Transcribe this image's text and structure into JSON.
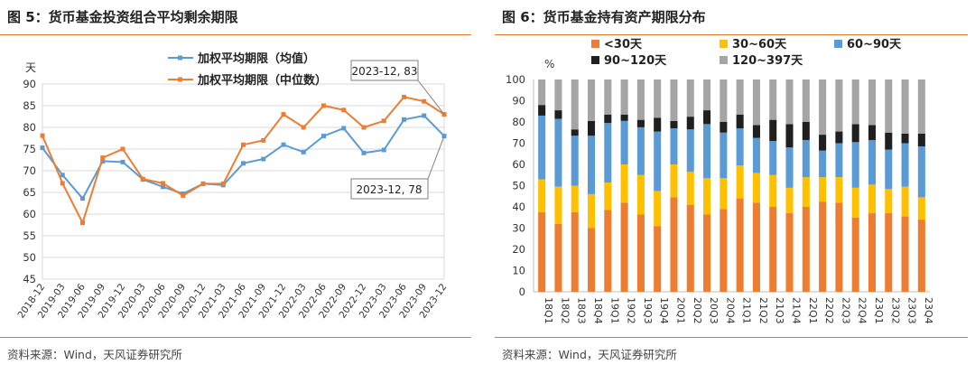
{
  "left": {
    "title": "图 5：货币基金投资组合平均剩余期限",
    "source": "资料来源：Wind，天风证券研究所",
    "unit_label": "天",
    "annotation_top": "2023-12, 83",
    "annotation_bottom": "2023-12, 78"
  },
  "right": {
    "title": "图 6：货币基金持有资产期限分布",
    "source": "资料来源：Wind，天风证券研究所",
    "unit_label": "%"
  },
  "colors": {
    "rule": "#e07b2e",
    "avg_line": "#5b9bd5",
    "median_line": "#ed7d31",
    "lt30": "#ed7d31",
    "d30_60": "#ffc000",
    "d60_90": "#5b9bd5",
    "d90_120": "#1f1f1f",
    "d120_397": "#a5a5a5"
  },
  "chart_data": [
    {
      "type": "line",
      "categories": [
        "2018-12",
        "2019-03",
        "2019-06",
        "2019-09",
        "2019-12",
        "2020-03",
        "2020-06",
        "2020-09",
        "2020-12",
        "2021-03",
        "2021-06",
        "2021-09",
        "2021-12",
        "2022-03",
        "2022-06",
        "2022-09",
        "2022-12",
        "2023-03",
        "2023-06",
        "2023-09",
        "2023-12"
      ],
      "series": [
        {
          "name": "加权平均期限（均值）",
          "values": [
            75.3,
            69,
            63.6,
            72.2,
            72,
            68,
            66.3,
            64.7,
            67,
            66.7,
            71.7,
            72.7,
            76,
            74.3,
            78,
            79.8,
            74.1,
            74.8,
            81.8,
            82.7,
            78
          ]
        },
        {
          "name": "加权平均期限（中位数）",
          "values": [
            78.1,
            67.1,
            58,
            73,
            75,
            68.1,
            67.1,
            64.3,
            67,
            67,
            76,
            77,
            83,
            80,
            85,
            84,
            80,
            81.5,
            87,
            86,
            83
          ]
        }
      ],
      "ylim": [
        45,
        90
      ],
      "yticks": [
        45,
        50,
        55,
        60,
        65,
        70,
        75,
        80,
        85,
        90
      ],
      "ylabel": "天",
      "grid": true,
      "legend": "top"
    },
    {
      "type": "bar",
      "stacked": true,
      "categories": [
        "18Q1",
        "18Q2",
        "18Q3",
        "18Q4",
        "19Q1",
        "19Q2",
        "19Q3",
        "19Q4",
        "20Q1",
        "20Q2",
        "20Q3",
        "20Q4",
        "21Q1",
        "21Q2",
        "21Q3",
        "21Q4",
        "22Q1",
        "22Q2",
        "22Q3",
        "22Q4",
        "23Q1",
        "23Q2",
        "23Q3",
        "23Q4"
      ],
      "series": [
        {
          "name": "<30天",
          "values": [
            37.5,
            32,
            37.5,
            30,
            38.5,
            42,
            36.5,
            31,
            44.5,
            41,
            36.5,
            39,
            44,
            42,
            40,
            37,
            40,
            42.5,
            42,
            35,
            37,
            37,
            35.5,
            34
          ]
        },
        {
          "name": "30~60天",
          "values": [
            15.5,
            17.5,
            12.5,
            16,
            13,
            18,
            18.5,
            16.5,
            15.5,
            15.5,
            17,
            14.5,
            15.5,
            14,
            15,
            12,
            14,
            11.5,
            12,
            14,
            13.5,
            11.5,
            14,
            10.5
          ]
        },
        {
          "name": "60~90天",
          "values": [
            30,
            32,
            23.5,
            27.5,
            28,
            20.5,
            22.5,
            28,
            17,
            20,
            25.5,
            21.5,
            17.5,
            16.5,
            16,
            19,
            17.5,
            12.5,
            16,
            21.5,
            21,
            18.5,
            20.5,
            24
          ]
        },
        {
          "name": "90~120天",
          "values": [
            5,
            4,
            3,
            7,
            4,
            3,
            3.5,
            6.5,
            3.5,
            6,
            6.5,
            5,
            6.5,
            6,
            10,
            11,
            8.5,
            7.5,
            5.5,
            8.5,
            7,
            8,
            4.5,
            6
          ]
        },
        {
          "name": "120~397天",
          "values": [
            12,
            14.5,
            23.5,
            19.5,
            16.5,
            16.5,
            19,
            18,
            19.5,
            17.5,
            14.5,
            20,
            16.5,
            21.5,
            19,
            21,
            20,
            26,
            24.5,
            21,
            21.5,
            25,
            25.5,
            25.5
          ]
        }
      ],
      "ylim": [
        0,
        100
      ],
      "yticks": [
        0,
        10,
        20,
        30,
        40,
        50,
        60,
        70,
        80,
        90,
        100
      ],
      "ylabel": "%",
      "legend": "top"
    }
  ]
}
